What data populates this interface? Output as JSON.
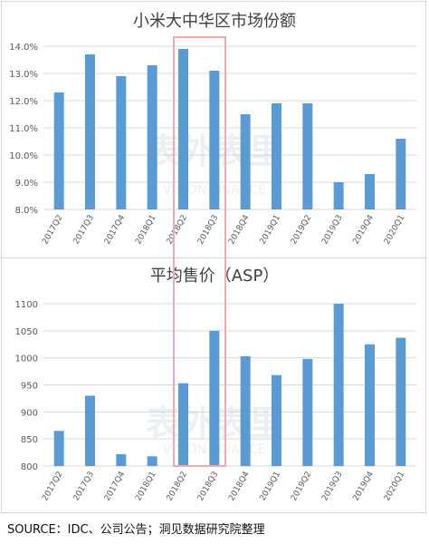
{
  "source_note": "SOURCE：IDC、公司公告；洞见数据研究院整理",
  "watermark": {
    "brand_text": "表外表里",
    "sub_text": "VISION FINANCE"
  },
  "colors": {
    "bar": "#5b9bd5",
    "highlight": "#f4aaaa",
    "grid": "#d9d9d9",
    "axis_text": "#595959"
  },
  "chart_data": [
    {
      "type": "bar",
      "title": "小米大中华区市场份额",
      "categories": [
        "2017Q2",
        "2017Q3",
        "2017Q4",
        "2018Q1",
        "2018Q2",
        "2018Q3",
        "2018Q4",
        "2019Q1",
        "2019Q2",
        "2019Q3",
        "2019Q4",
        "2020Q1"
      ],
      "values": [
        12.3,
        13.7,
        12.9,
        13.3,
        13.9,
        13.1,
        11.5,
        11.9,
        11.9,
        9.0,
        9.3,
        10.6
      ],
      "yticks": [
        "8.0%",
        "9.0%",
        "10.0%",
        "11.0%",
        "12.0%",
        "13.0%",
        "14.0%"
      ],
      "ylim": [
        8,
        14
      ],
      "grid": true,
      "highlight_categories": [
        "2018Q2",
        "2018Q3"
      ]
    },
    {
      "type": "bar",
      "title": "平均售价（ASP）",
      "categories": [
        "2017Q2",
        "2017Q3",
        "2017Q4",
        "2018Q1",
        "2018Q2",
        "2018Q3",
        "2018Q4",
        "2019Q1",
        "2019Q2",
        "2019Q3",
        "2019Q4",
        "2020Q1"
      ],
      "values": [
        865,
        930,
        822,
        818,
        953,
        1050,
        1003,
        968,
        998,
        1100,
        1025,
        1037
      ],
      "yticks": [
        "800",
        "850",
        "900",
        "950",
        "1000",
        "1050",
        "1100"
      ],
      "ylim": [
        800,
        1100
      ],
      "grid": true,
      "highlight_categories": [
        "2018Q2",
        "2018Q3"
      ]
    }
  ]
}
